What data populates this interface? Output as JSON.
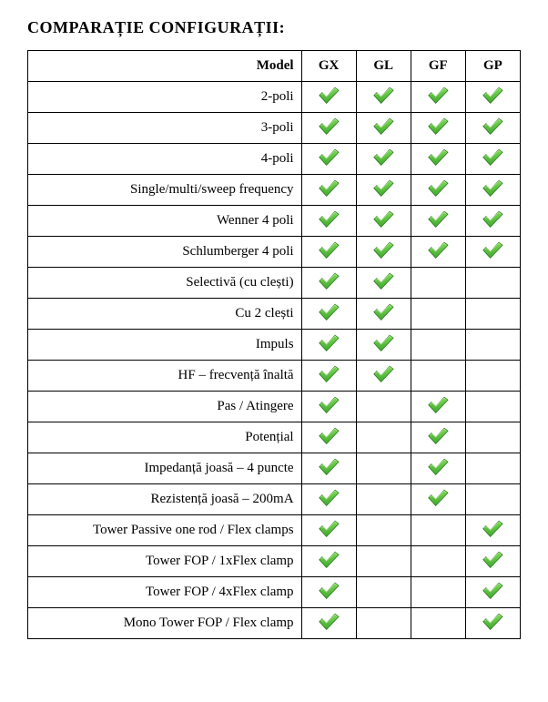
{
  "title": "COMPARAȚIE CONFIGURAȚII:",
  "table": {
    "header": {
      "model": "Model",
      "cols": [
        "GX",
        "GL",
        "GF",
        "GP"
      ]
    },
    "rows": [
      {
        "label": "2-poli",
        "checks": [
          true,
          true,
          true,
          true
        ]
      },
      {
        "label": "3-poli",
        "checks": [
          true,
          true,
          true,
          true
        ]
      },
      {
        "label": "4-poli",
        "checks": [
          true,
          true,
          true,
          true
        ]
      },
      {
        "label": "Single/multi/sweep frequency",
        "checks": [
          true,
          true,
          true,
          true
        ]
      },
      {
        "label": "Wenner 4 poli",
        "checks": [
          true,
          true,
          true,
          true
        ]
      },
      {
        "label": "Schlumberger 4 poli",
        "checks": [
          true,
          true,
          true,
          true
        ]
      },
      {
        "label": "Selectivă (cu clești)",
        "checks": [
          true,
          true,
          false,
          false
        ]
      },
      {
        "label": "Cu 2 clești",
        "checks": [
          true,
          true,
          false,
          false
        ]
      },
      {
        "label": "Impuls",
        "checks": [
          true,
          true,
          false,
          false
        ]
      },
      {
        "label": "HF – frecvență înaltă",
        "checks": [
          true,
          true,
          false,
          false
        ]
      },
      {
        "label": "Pas / Atingere",
        "checks": [
          true,
          false,
          true,
          false
        ]
      },
      {
        "label": "Potențial",
        "checks": [
          true,
          false,
          true,
          false
        ]
      },
      {
        "label": "Impedanță joasă – 4 puncte",
        "checks": [
          true,
          false,
          true,
          false
        ]
      },
      {
        "label": "Rezistență joasă – 200mA",
        "checks": [
          true,
          false,
          true,
          false
        ]
      },
      {
        "label": "Tower Passive one rod / Flex clamps",
        "checks": [
          true,
          false,
          false,
          true
        ]
      },
      {
        "label": "Tower FOP / 1xFlex clamp",
        "checks": [
          true,
          false,
          false,
          true
        ]
      },
      {
        "label": "Tower FOP / 4xFlex clamp",
        "checks": [
          true,
          false,
          false,
          true
        ]
      },
      {
        "label": "Mono Tower FOP / Flex clamp",
        "checks": [
          true,
          false,
          false,
          true
        ]
      }
    ]
  },
  "icons": {
    "checkmark_svg": {
      "width": 26,
      "height": 22,
      "fill_light": "#7ed957",
      "fill_dark": "#3fa82e",
      "stroke": "#2a7a1d"
    }
  }
}
